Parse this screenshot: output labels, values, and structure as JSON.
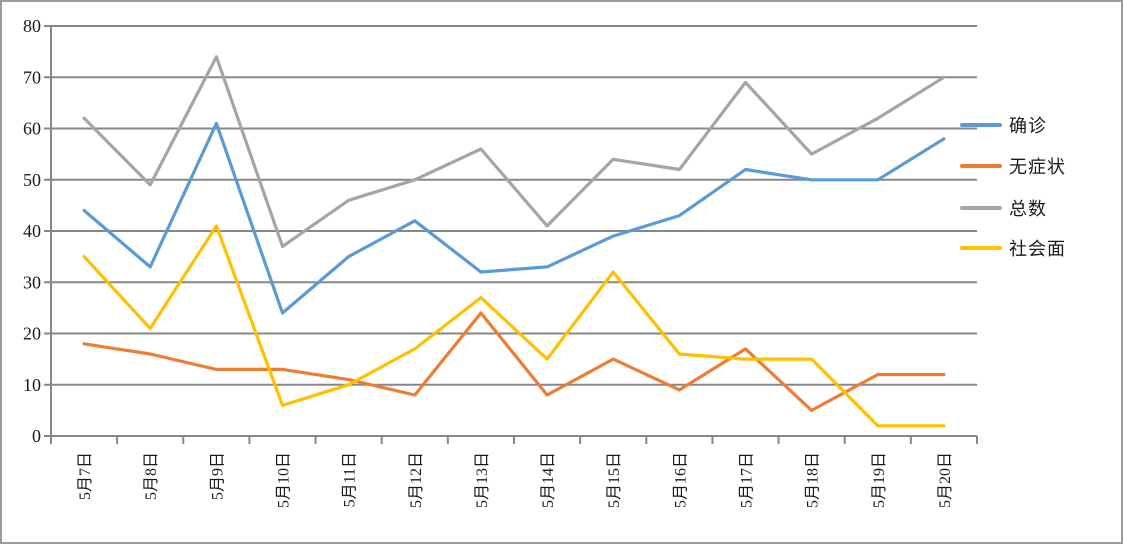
{
  "chart_data": {
    "type": "line",
    "title": "",
    "xlabel": "",
    "ylabel": "",
    "categories": [
      "5月7日",
      "5月8日",
      "5月9日",
      "5月10日",
      "5月11日",
      "5月12日",
      "5月13日",
      "5月14日",
      "5月15日",
      "5月16日",
      "5月17日",
      "5月18日",
      "5月19日",
      "5月20日"
    ],
    "series": [
      {
        "name": "确诊",
        "color": "#5B9BD5",
        "values": [
          44,
          33,
          61,
          24,
          35,
          42,
          32,
          33,
          39,
          43,
          52,
          50,
          50,
          58
        ]
      },
      {
        "name": "无症状",
        "color": "#ED7D31",
        "values": [
          18,
          16,
          13,
          13,
          11,
          8,
          24,
          8,
          15,
          9,
          17,
          5,
          12,
          12
        ]
      },
      {
        "name": "总数",
        "color": "#A5A5A5",
        "values": [
          62,
          49,
          74,
          37,
          46,
          50,
          56,
          41,
          54,
          52,
          69,
          55,
          62,
          70
        ]
      },
      {
        "name": "社会面",
        "color": "#FFC000",
        "values": [
          35,
          21,
          41,
          6,
          10,
          17,
          27,
          15,
          32,
          16,
          15,
          15,
          2,
          2
        ]
      }
    ],
    "ylim": [
      0,
      80
    ],
    "yticks": [
      0,
      10,
      20,
      30,
      40,
      50,
      60,
      70,
      80
    ],
    "grid": "horizontal",
    "legend_position": "right",
    "x_label_rotation": -90
  },
  "colors": {
    "gridline": "#878787",
    "axis": "#878787",
    "text": "#1a1a1a",
    "frame_border": "#9c9c9c",
    "background": "#ffffff"
  }
}
